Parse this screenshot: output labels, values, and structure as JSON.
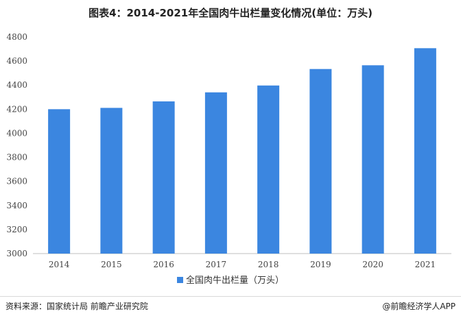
{
  "chart_data": {
    "type": "bar",
    "title": "图表4：2014-2021年全国肉牛出栏量变化情况(单位：万头)",
    "categories": [
      "2014",
      "2015",
      "2016",
      "2017",
      "2018",
      "2019",
      "2020",
      "2021"
    ],
    "series": [
      {
        "name": "全国肉牛出栏量（万头）",
        "values": [
          4200,
          4211,
          4265,
          4340,
          4397,
          4534,
          4565,
          4707
        ]
      }
    ],
    "ylim": [
      3000,
      4800
    ],
    "yticks": [
      3000,
      3200,
      3400,
      3600,
      3800,
      4000,
      4200,
      4400,
      4600,
      4800
    ],
    "grid": false,
    "legend": "bottom-center",
    "bar_color": "#3b86e0"
  },
  "footer": {
    "source": "资料来源：国家统计局 前瞻产业研究院",
    "credit": "@前瞻经济学人APP"
  }
}
